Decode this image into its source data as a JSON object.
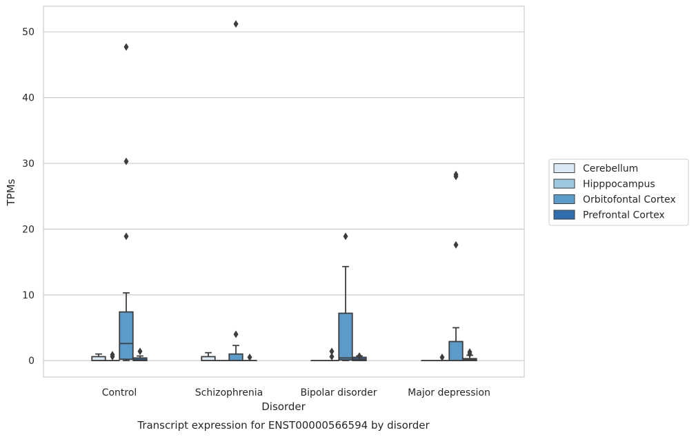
{
  "chart_data": {
    "type": "box",
    "caption": "Transcript expression for ENST00000566594 by disorder",
    "xlabel": "Disorder",
    "ylabel": "TPMs",
    "ylim": [
      -2.5,
      53.9
    ],
    "yticks": [
      0,
      10,
      20,
      30,
      40,
      50
    ],
    "grid": true,
    "legend_position": "right",
    "categories": [
      "Control",
      "Schizophrenia",
      "Bipolar disorder",
      "Major depression"
    ],
    "series": [
      {
        "name": "Cerebellum",
        "color": "#dbe9f6",
        "boxes": [
          {
            "category": "Control",
            "whisker_low": 0,
            "q1": 0,
            "median": 0,
            "q3": 0.6,
            "whisker_high": 1.0,
            "outliers": []
          },
          {
            "category": "Schizophrenia",
            "whisker_low": 0,
            "q1": 0,
            "median": 0,
            "q3": 0.6,
            "whisker_high": 1.2,
            "outliers": []
          },
          {
            "category": "Bipolar disorder",
            "whisker_low": 0,
            "q1": 0,
            "median": 0,
            "q3": 0,
            "whisker_high": 0,
            "outliers": []
          },
          {
            "category": "Major depression",
            "whisker_low": 0,
            "q1": 0,
            "median": 0,
            "q3": 0,
            "whisker_high": 0,
            "outliers": []
          }
        ]
      },
      {
        "name": "Hipppocampus",
        "color": "#9cc9e1",
        "boxes": [
          {
            "category": "Control",
            "whisker_low": 0,
            "q1": 0,
            "median": 0,
            "q3": 0,
            "whisker_high": 0,
            "outliers": [
              0.6,
              0.9
            ]
          },
          {
            "category": "Schizophrenia",
            "whisker_low": 0,
            "q1": 0,
            "median": 0,
            "q3": 0,
            "whisker_high": 0,
            "outliers": []
          },
          {
            "category": "Bipolar disorder",
            "whisker_low": 0,
            "q1": 0,
            "median": 0,
            "q3": 0,
            "whisker_high": 0,
            "outliers": [
              0.6,
              1.4
            ]
          },
          {
            "category": "Major depression",
            "whisker_low": 0,
            "q1": 0,
            "median": 0,
            "q3": 0,
            "whisker_high": 0,
            "outliers": [
              0.5
            ]
          }
        ]
      },
      {
        "name": "Orbitofontal Cortex",
        "color": "#5a9bc9",
        "boxes": [
          {
            "category": "Control",
            "whisker_low": 0,
            "q1": 0.2,
            "median": 2.6,
            "q3": 7.4,
            "whisker_high": 10.3,
            "outliers": [
              18.9,
              30.3,
              47.7
            ]
          },
          {
            "category": "Schizophrenia",
            "whisker_low": 0,
            "q1": 0,
            "median": 0,
            "q3": 1.0,
            "whisker_high": 2.3,
            "outliers": [
              4.0,
              51.2
            ]
          },
          {
            "category": "Bipolar disorder",
            "whisker_low": 0,
            "q1": 0.1,
            "median": 0.4,
            "q3": 7.2,
            "whisker_high": 14.3,
            "outliers": [
              18.9
            ]
          },
          {
            "category": "Major depression",
            "whisker_low": 0,
            "q1": 0,
            "median": 0,
            "q3": 2.9,
            "whisker_high": 5.0,
            "outliers": [
              17.6,
              28.0,
              28.3
            ]
          }
        ]
      },
      {
        "name": "Prefrontal Cortex",
        "color": "#2f6eae",
        "boxes": [
          {
            "category": "Control",
            "whisker_low": 0,
            "q1": 0,
            "median": 0.1,
            "q3": 0.4,
            "whisker_high": 0.7,
            "outliers": [
              1.4
            ]
          },
          {
            "category": "Schizophrenia",
            "whisker_low": 0,
            "q1": 0,
            "median": 0,
            "q3": 0,
            "whisker_high": 0,
            "outliers": [
              0.5
            ]
          },
          {
            "category": "Bipolar disorder",
            "whisker_low": 0,
            "q1": 0,
            "median": 0.2,
            "q3": 0.5,
            "whisker_high": 0.7,
            "outliers": [
              0.7
            ]
          },
          {
            "category": "Major depression",
            "whisker_low": 0,
            "q1": 0,
            "median": 0.1,
            "q3": 0.3,
            "whisker_high": 0.8,
            "outliers": [
              1.0,
              1.3
            ]
          }
        ]
      }
    ]
  }
}
